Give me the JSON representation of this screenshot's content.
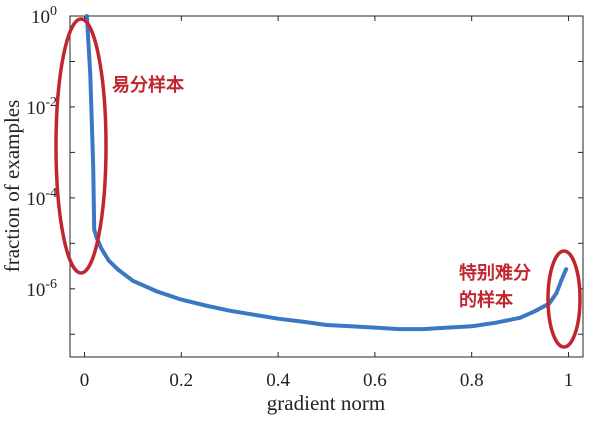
{
  "chart_data": {
    "type": "line",
    "xlabel": "gradient norm",
    "ylabel": "fraction of examples",
    "xlim": [
      -0.03,
      1.03
    ],
    "ylim_log10": [
      -7.5,
      0
    ],
    "yscale": "log",
    "x_ticks": [
      {
        "value": 0,
        "label": "0"
      },
      {
        "value": 0.2,
        "label": "0.2"
      },
      {
        "value": 0.4,
        "label": "0.4"
      },
      {
        "value": 0.6,
        "label": "0.6"
      },
      {
        "value": 0.8,
        "label": "0.8"
      },
      {
        "value": 1,
        "label": "1"
      }
    ],
    "y_ticks": [
      {
        "exp": 0,
        "base": "10",
        "sup": "0"
      },
      {
        "exp": -2,
        "base": "10",
        "sup": "-2"
      },
      {
        "exp": -4,
        "base": "10",
        "sup": "-4"
      },
      {
        "exp": -6,
        "base": "10",
        "sup": "-6"
      }
    ],
    "line_color": "#3a78c3",
    "grid": false,
    "series": [
      {
        "x": [
          0.005,
          0.012,
          0.018,
          0.02,
          0.025,
          0.035,
          0.05,
          0.07,
          0.1,
          0.15,
          0.2,
          0.25,
          0.3,
          0.35,
          0.4,
          0.45,
          0.5,
          0.55,
          0.6,
          0.65,
          0.7,
          0.75,
          0.8,
          0.85,
          0.9,
          0.93,
          0.96,
          0.975,
          0.985,
          0.995
        ],
        "y": [
          1.0,
          0.05,
          0.0005,
          2e-05,
          1.34e-05,
          7.6e-06,
          4.2e-06,
          2.6e-06,
          1.5e-06,
          8.7e-07,
          5.8e-07,
          4.3e-07,
          3.3e-07,
          2.7e-07,
          2.2e-07,
          1.9e-07,
          1.6e-07,
          1.5e-07,
          1.4e-07,
          1.3e-07,
          1.3e-07,
          1.4e-07,
          1.5e-07,
          1.8e-07,
          2.3e-07,
          3.2e-07,
          4.7e-07,
          8e-07,
          1.5e-06,
          2.7e-06
        ]
      }
    ]
  },
  "annotations": {
    "color": "#c0262d",
    "easy_label": "易分样本",
    "hard_label_line1": "特别难分",
    "hard_label_line2": "的样本"
  }
}
